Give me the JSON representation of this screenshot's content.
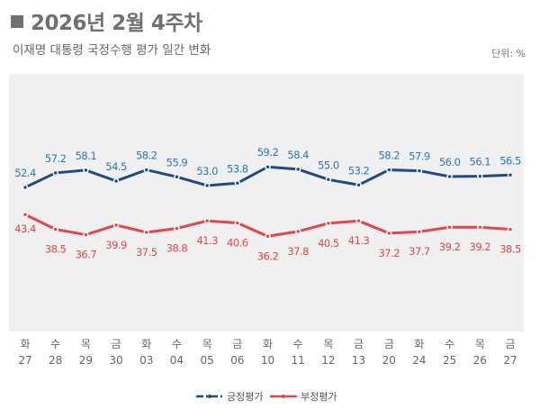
{
  "header": {
    "title": "2026년 2월 4주차",
    "subtitle": "이재명 대통령 국정수행 평가 일간 변화",
    "unit": "단위: %"
  },
  "chart_data": {
    "type": "line",
    "title": "2026년 2월 4주차",
    "subtitle": "이재명 대통령 국정수행 평가 일간 변화",
    "unit": "%",
    "categories": [
      [
        "화",
        "27"
      ],
      [
        "수",
        "28"
      ],
      [
        "목",
        "29"
      ],
      [
        "금",
        "30"
      ],
      [
        "화",
        "03"
      ],
      [
        "수",
        "04"
      ],
      [
        "목",
        "05"
      ],
      [
        "금",
        "06"
      ],
      [
        "화",
        "10"
      ],
      [
        "수",
        "11"
      ],
      [
        "목",
        "12"
      ],
      [
        "금",
        "13"
      ],
      [
        "금",
        "20"
      ],
      [
        "화",
        "24"
      ],
      [
        "수",
        "25"
      ],
      [
        "목",
        "26"
      ],
      [
        "금",
        "27"
      ]
    ],
    "series": [
      {
        "name": "긍정평가",
        "color": "#1f4a85",
        "label_color": "#2a77b5",
        "values": [
          52.4,
          57.2,
          58.1,
          54.5,
          58.2,
          55.9,
          53.0,
          53.8,
          59.2,
          58.4,
          55.0,
          53.2,
          58.2,
          57.9,
          56.0,
          56.1,
          56.5
        ]
      },
      {
        "name": "부정평가",
        "color": "#e0474c",
        "label_color": "#e0474c",
        "values": [
          43.4,
          38.5,
          36.7,
          39.9,
          37.5,
          38.8,
          41.3,
          40.6,
          36.2,
          37.8,
          40.5,
          41.3,
          37.2,
          37.7,
          39.2,
          39.2,
          38.5
        ]
      }
    ],
    "legend": "bottom-center",
    "grid": false,
    "background": "#f0f0f0"
  }
}
